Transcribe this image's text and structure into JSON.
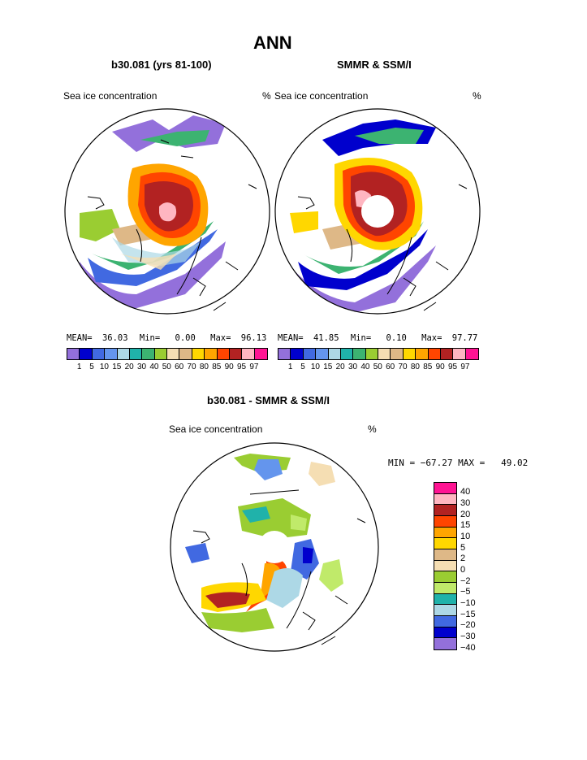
{
  "title": "ANN",
  "left_panel": {
    "subtitle": "b30.081 (yrs 81-100)",
    "left_label": "Sea ice concentration",
    "units": "%",
    "stats": {
      "mean_label": "MEAN=",
      "mean": "36.03",
      "min_label": "Min=",
      "min": "0.00",
      "max_label": "Max=",
      "max": "96.13"
    }
  },
  "right_panel": {
    "subtitle": "SMMR & SSM/I",
    "left_label": "Sea ice concentration",
    "units": "%",
    "stats": {
      "mean_label": "MEAN=",
      "mean": "41.85",
      "min_label": "Min=",
      "min": "0.10",
      "max_label": "Max=",
      "max": "97.77"
    }
  },
  "colorbar_top": {
    "colors": [
      "#9370db",
      "#0000cd",
      "#4169e1",
      "#6495ed",
      "#add8e6",
      "#20b2aa",
      "#3cb371",
      "#9acd32",
      "#f5deb3",
      "#deb887",
      "#ffd700",
      "#ffa500",
      "#ff4500",
      "#b22222",
      "#ffb6c1",
      "#ff1493"
    ],
    "ticks": [
      "1",
      "5",
      "10",
      "15",
      "20",
      "30",
      "40",
      "50",
      "60",
      "70",
      "80",
      "85",
      "90",
      "95",
      "97"
    ]
  },
  "diff_panel": {
    "subtitle": "b30.081 - SMMR & SSM/I",
    "left_label": "Sea ice concentration",
    "units": "%",
    "minmax": "MIN = −67.27 MAX =   49.02"
  },
  "colorbar_diff": {
    "colors": [
      "#ff1493",
      "#ffb6c1",
      "#b22222",
      "#ff4500",
      "#ffa500",
      "#ffd700",
      "#deb887",
      "#f5deb3",
      "#9acd32",
      "#c0ea6a",
      "#20b2aa",
      "#add8e6",
      "#4169e1",
      "#0000cd",
      "#9370db"
    ],
    "ticks": [
      "40",
      "30",
      "20",
      "15",
      "10",
      "5",
      "2",
      "0",
      "−2",
      "−5",
      "−10",
      "−15",
      "−20",
      "−30",
      "−40"
    ]
  }
}
